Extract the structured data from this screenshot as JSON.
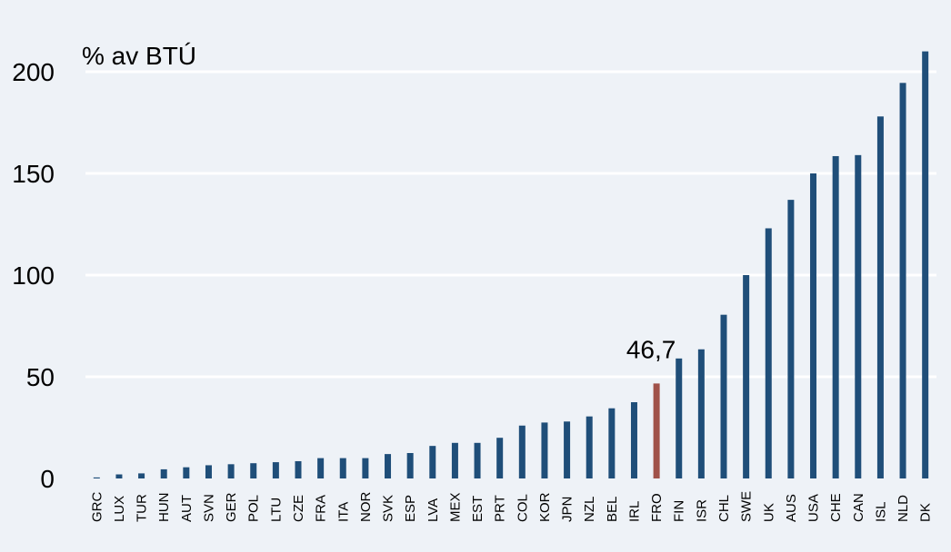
{
  "chart_data": {
    "type": "bar",
    "title": "",
    "unit_label": "% av BTÚ",
    "xlabel": "",
    "ylabel": "",
    "ylim": [
      0,
      210
    ],
    "yticks": [
      0,
      50,
      100,
      150,
      200
    ],
    "grid": true,
    "legend": "none",
    "categories": [
      "GRC",
      "LUX",
      "TUR",
      "HUN",
      "AUT",
      "SVN",
      "GER",
      "POL",
      "LTU",
      "CZE",
      "FRA",
      "ITA",
      "NOR",
      "SVK",
      "ESP",
      "LVA",
      "MEX",
      "EST",
      "PRT",
      "COL",
      "KOR",
      "JPN",
      "NZL",
      "BEL",
      "IRL",
      "FRO",
      "FIN",
      "ISR",
      "CHL",
      "SWE",
      "UK",
      "AUS",
      "USA",
      "CHE",
      "CAN",
      "ISL",
      "NLD",
      "DK"
    ],
    "values": [
      0.5,
      2,
      2.5,
      4.5,
      5.5,
      6.5,
      7,
      7.5,
      8,
      8.5,
      10,
      10,
      10,
      12,
      12.5,
      16,
      17.5,
      17.5,
      20,
      26,
      27.5,
      28,
      30.5,
      34.5,
      37.5,
      46.7,
      59,
      63.5,
      80.5,
      100,
      123,
      137,
      150,
      158.5,
      159,
      178,
      194.5,
      210
    ],
    "highlight": {
      "category": "FRO",
      "label": "46,7"
    },
    "colors": {
      "bar": "#1f4e79",
      "highlight": "#a0524a",
      "background": "#eef2f7",
      "grid": "#ffffff"
    }
  }
}
